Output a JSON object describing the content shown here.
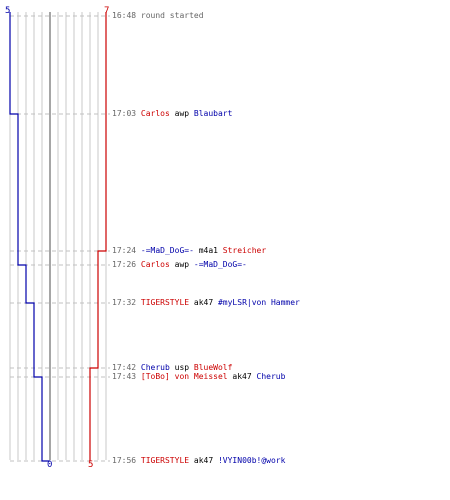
{
  "colors": {
    "blue": "#0000aa",
    "red": "#cc0000",
    "grid": "#c8c8c8",
    "midline": "#888888",
    "dash": "#c0c0c0",
    "time": "#666666"
  },
  "scores": {
    "top_left": "5",
    "top_right": "7",
    "bottom_mid": "0",
    "bottom_right": "5"
  },
  "events": [
    {
      "time": "16:48",
      "parts": [
        {
          "text": "round started",
          "team": "grey"
        }
      ]
    },
    {
      "time": "17:03",
      "parts": [
        {
          "text": "Carlos",
          "team": "red"
        },
        {
          "text": "awp",
          "team": "black"
        },
        {
          "text": "Blaubart",
          "team": "blue"
        }
      ]
    },
    {
      "time": "17:24",
      "parts": [
        {
          "text": "-=MaD_DoG=-",
          "team": "blue"
        },
        {
          "text": "m4a1",
          "team": "black"
        },
        {
          "text": "Streicher",
          "team": "red"
        }
      ]
    },
    {
      "time": "17:26",
      "parts": [
        {
          "text": "Carlos",
          "team": "red"
        },
        {
          "text": "awp",
          "team": "black"
        },
        {
          "text": "-=MaD_DoG=-",
          "team": "blue"
        }
      ]
    },
    {
      "time": "17:32",
      "parts": [
        {
          "text": "TIGERSTYLE",
          "team": "red"
        },
        {
          "text": "ak47",
          "team": "black"
        },
        {
          "text": "#myLSR|von Hammer",
          "team": "blue"
        }
      ]
    },
    {
      "time": "17:42",
      "parts": [
        {
          "text": "Cherub",
          "team": "blue"
        },
        {
          "text": "usp",
          "team": "black"
        },
        {
          "text": "BlueWolf",
          "team": "red"
        }
      ]
    },
    {
      "time": "17:43",
      "parts": [
        {
          "text": "[ToBo] von Meissel",
          "team": "red"
        },
        {
          "text": "ak47",
          "team": "black"
        },
        {
          "text": "Cherub",
          "team": "blue"
        }
      ]
    },
    {
      "time": "17:56",
      "parts": [
        {
          "text": "TIGERSTYLE",
          "team": "red"
        },
        {
          "text": "ak47",
          "team": "black"
        },
        {
          "text": "!VYIN00b!@work",
          "team": "blue"
        }
      ]
    }
  ]
}
